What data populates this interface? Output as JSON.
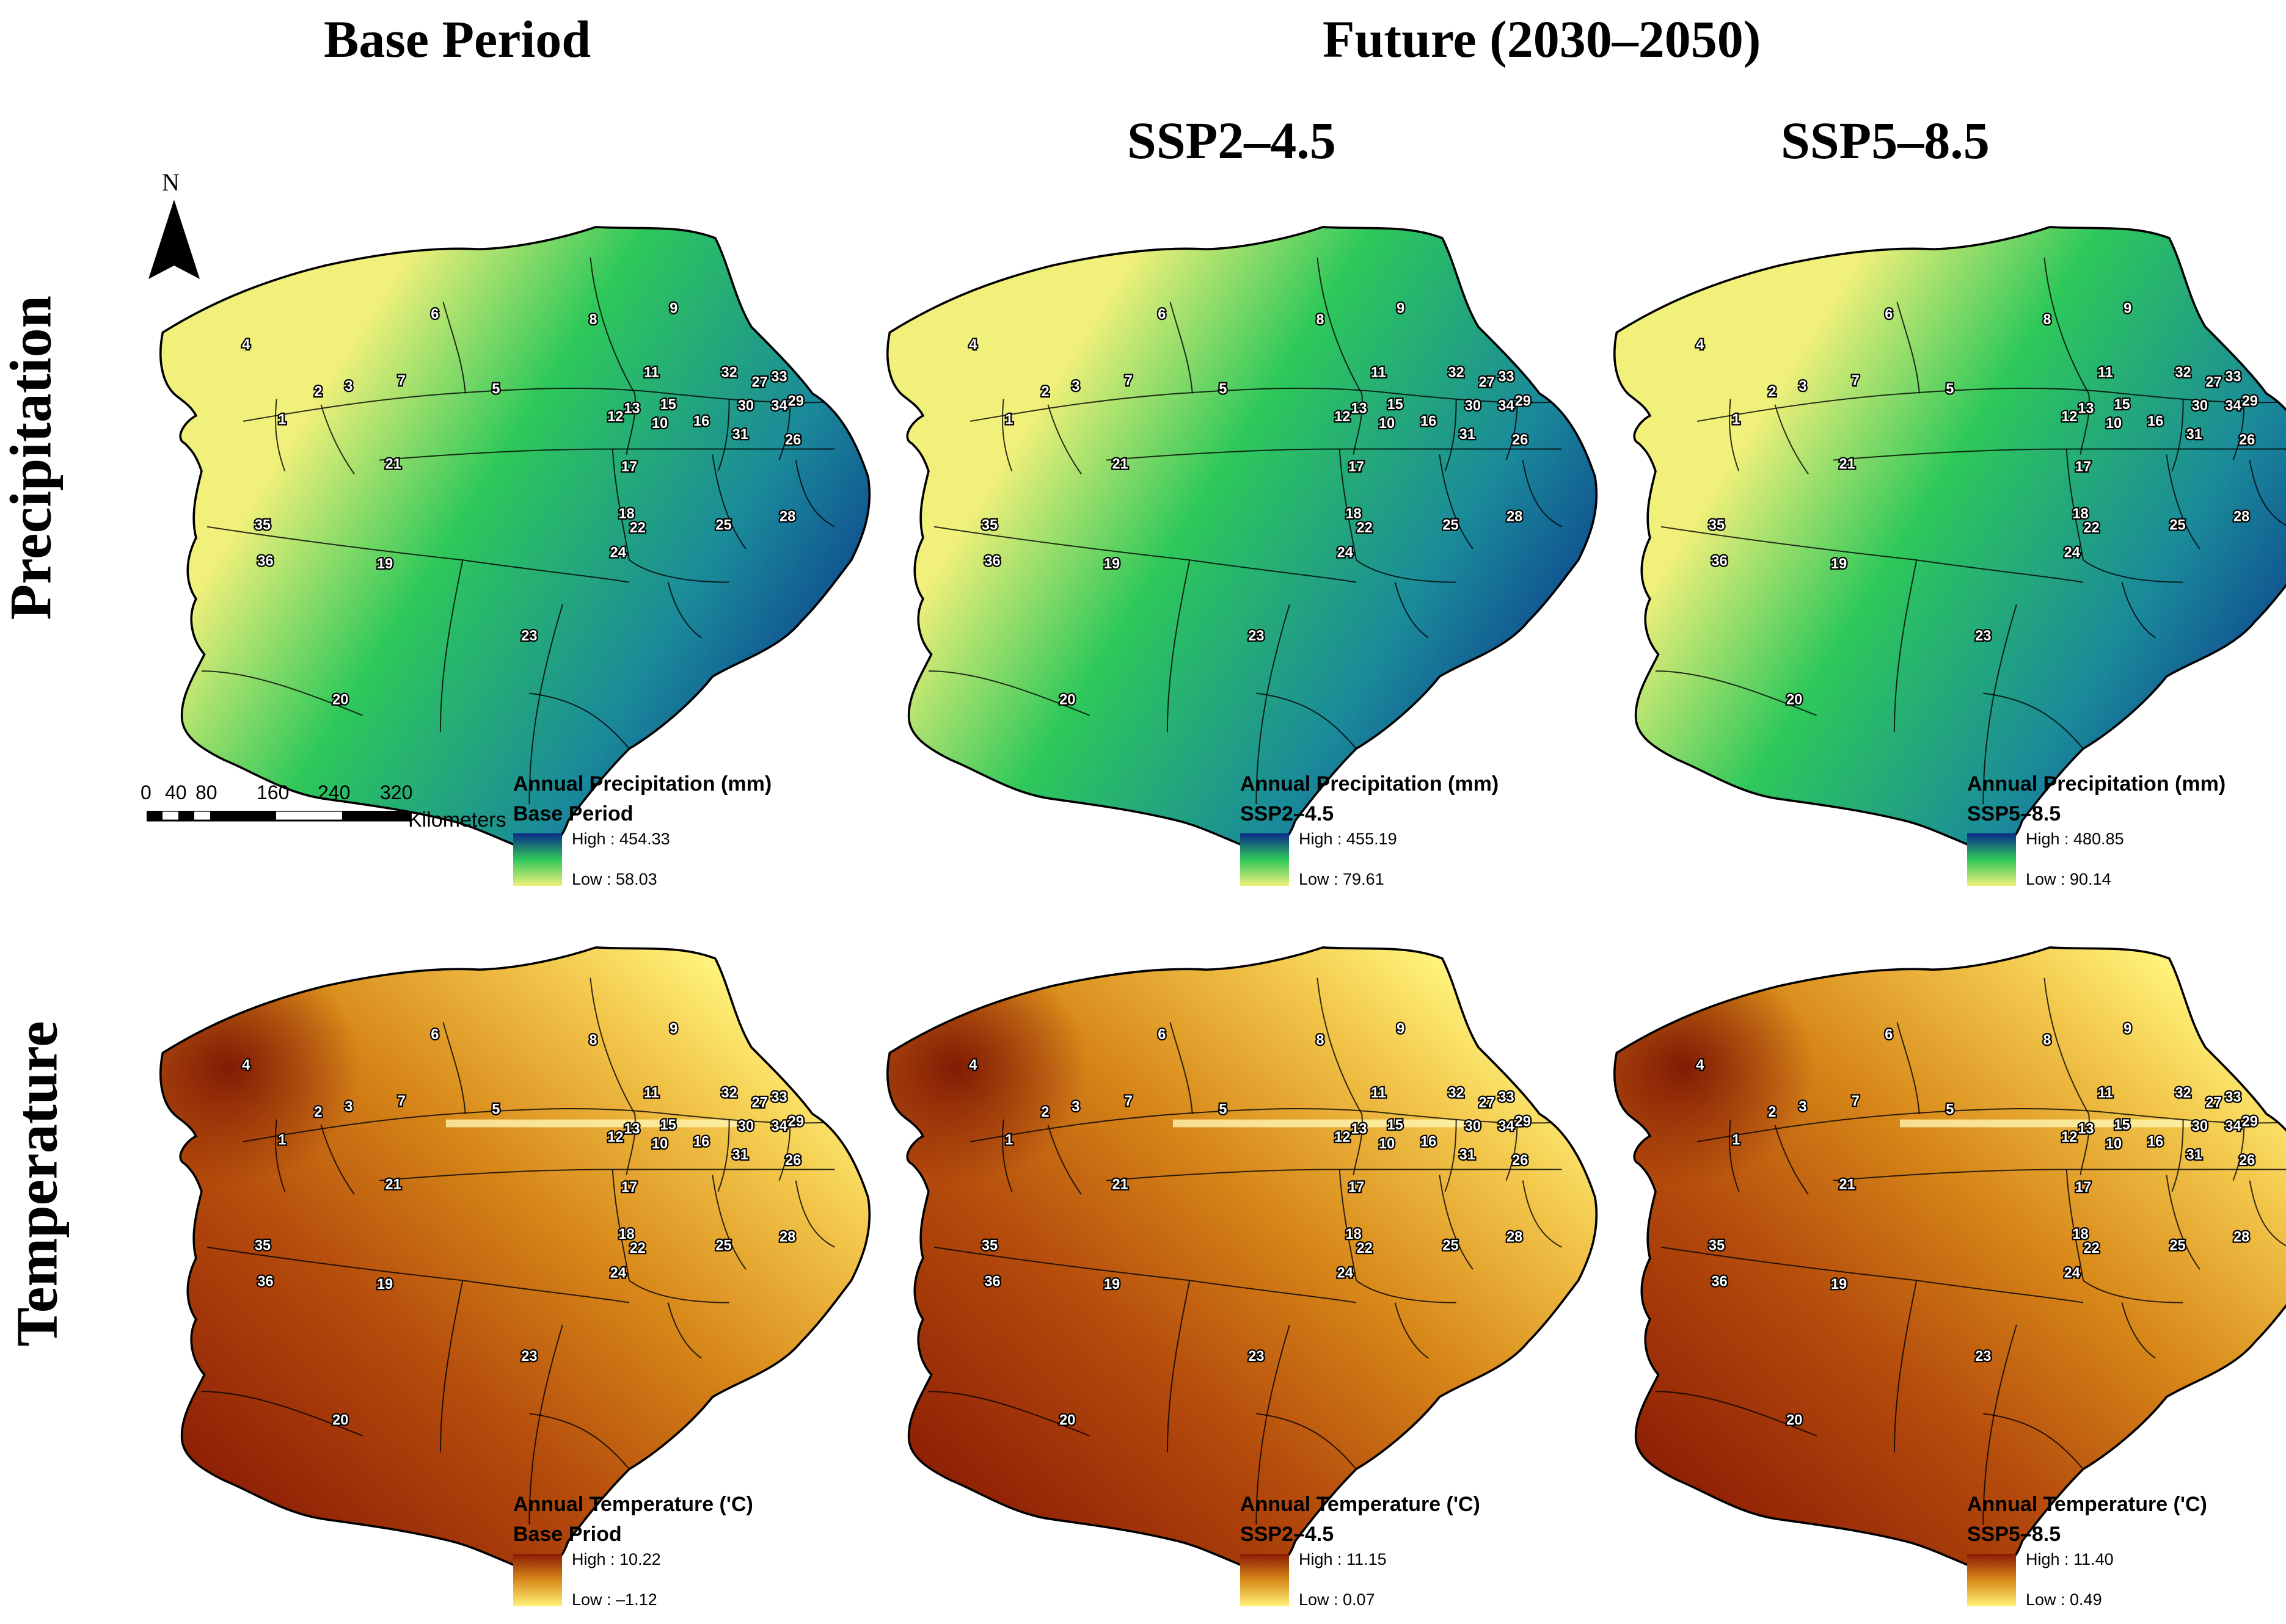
{
  "headers": {
    "base_period": "Base Period",
    "future": "Future (2030–2050)",
    "ssp245": "SSP2–4.5",
    "ssp585": "SSP5–8.5"
  },
  "row_labels": {
    "precipitation": "Precipitation",
    "temperature": "Temperature"
  },
  "north_arrow": {
    "label": "N",
    "icon": "north-arrow-icon"
  },
  "scale_bar": {
    "ticks": [
      "0",
      "40",
      "80",
      "160",
      "240",
      "320"
    ],
    "unit": "Kilometers"
  },
  "panels": {
    "precip_base": {
      "legend_title": "Annual Precipitation (mm)",
      "legend_subtitle": "Base Period",
      "high": "High : 454.33",
      "low": "Low : 58.03",
      "color_high": "#0a2a8a",
      "color_mid": "#2ec85a",
      "color_low": "#f0f07a"
    },
    "precip_ssp245": {
      "legend_title": "Annual Precipitation (mm)",
      "legend_subtitle": "SSP2–4.5",
      "high": "High : 455.19",
      "low": "Low : 79.61",
      "color_high": "#0a2a8a",
      "color_mid": "#2ec85a",
      "color_low": "#f0f07a"
    },
    "precip_ssp585": {
      "legend_title": "Annual Precipitation (mm)",
      "legend_subtitle": "SSP5–8.5",
      "high": "High : 480.85",
      "low": "Low : 90.14",
      "color_high": "#0a2a8a",
      "color_mid": "#2ec85a",
      "color_low": "#f0f07a"
    },
    "temp_base": {
      "legend_title": "Annual Temperature ('C)",
      "legend_subtitle": "Base Priod",
      "high": "High : 10.22",
      "low": "Low :  –1.12",
      "color_high": "#8a1a05",
      "color_mid": "#d98a1a",
      "color_low": "#fff27a"
    },
    "temp_ssp245": {
      "legend_title": "Annual Temperature ('C)",
      "legend_subtitle": "SSP2–4.5",
      "high": "High : 11.15",
      "low": "Low : 0.07",
      "color_high": "#8a1a05",
      "color_mid": "#d98a1a",
      "color_low": "#fff27a"
    },
    "temp_ssp585": {
      "legend_title": "Annual Temperature ('C)",
      "legend_subtitle": "SSP5–8.5",
      "high": "High : 11.40",
      "low": "Low : 0.49",
      "color_high": "#8a1a05",
      "color_mid": "#d98a1a",
      "color_low": "#fff27a"
    }
  },
  "region_ids": [
    "1",
    "2",
    "3",
    "4",
    "5",
    "6",
    "7",
    "8",
    "9",
    "10",
    "11",
    "12",
    "13",
    "15",
    "16",
    "17",
    "18",
    "19",
    "20",
    "21",
    "22",
    "23",
    "24",
    "25",
    "26",
    "27",
    "28",
    "29",
    "30",
    "31",
    "32",
    "33",
    "34",
    "35",
    "36"
  ]
}
